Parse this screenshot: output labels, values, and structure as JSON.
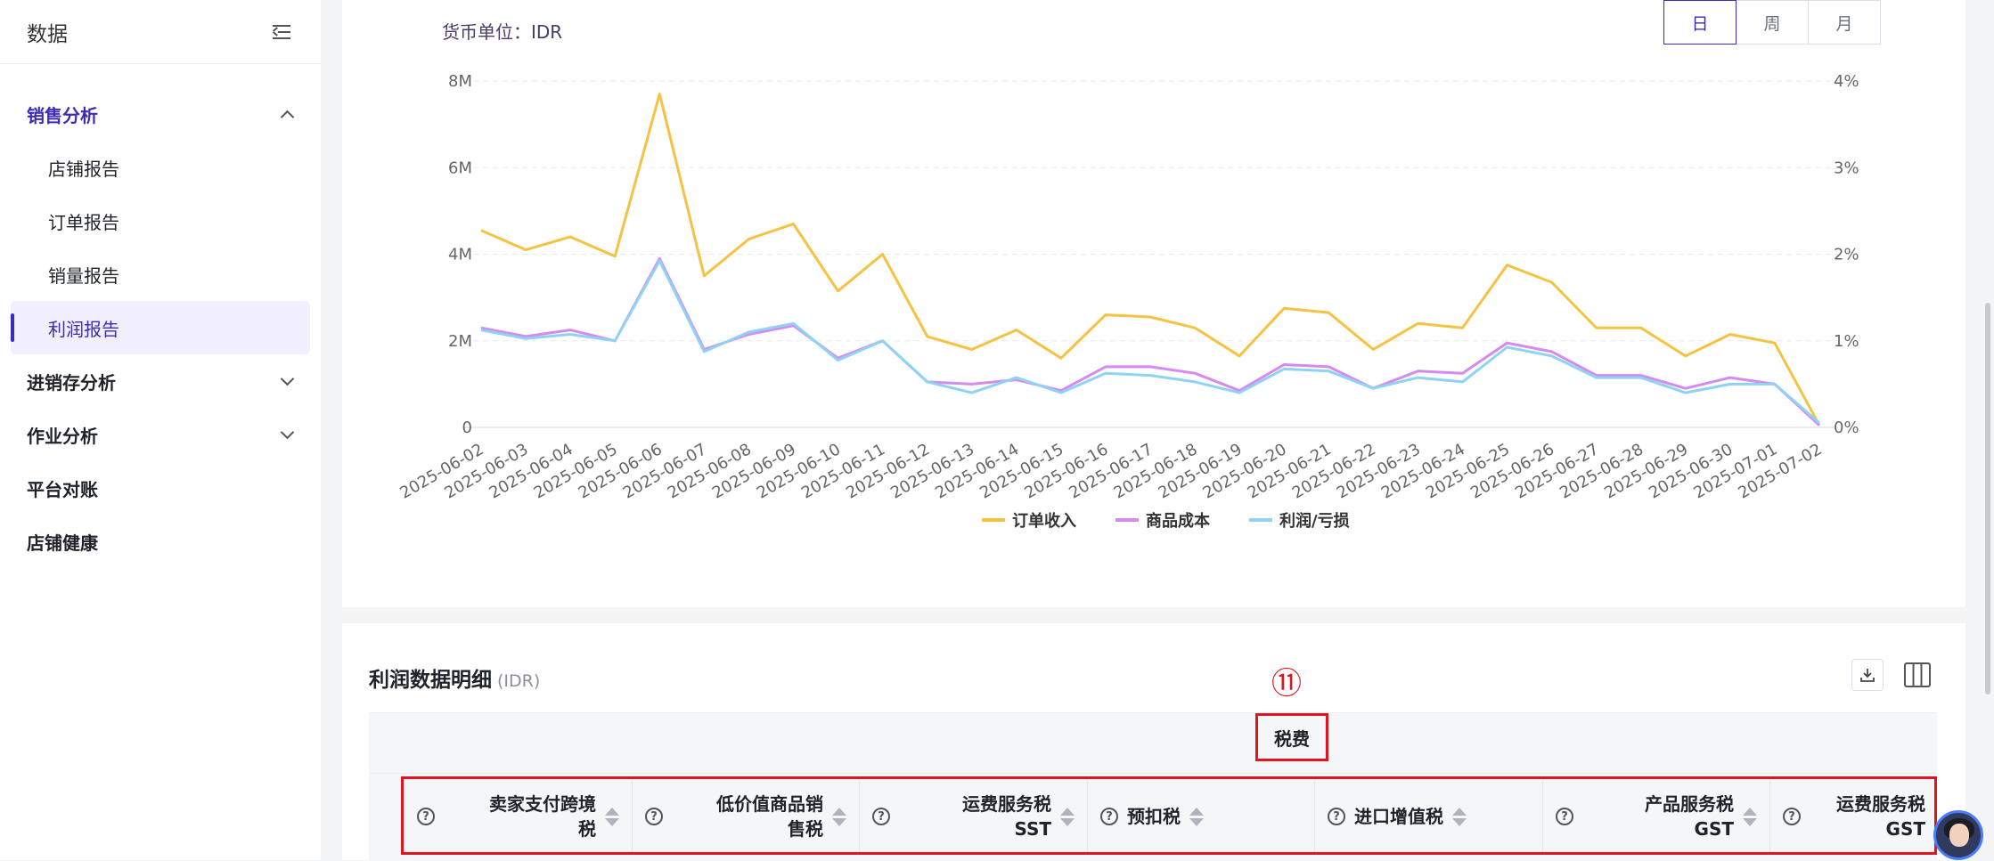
{
  "sidebar": {
    "title": "数据",
    "groups": [
      {
        "label": "销售分析",
        "expanded": true
      },
      {
        "label": "进销存分析"
      },
      {
        "label": "作业分析"
      },
      {
        "label": "平台对账"
      },
      {
        "label": "店铺健康"
      }
    ],
    "sales_items": [
      "店铺报告",
      "订单报告",
      "销量报告",
      "利润报告"
    ],
    "selected_item": "利润报告"
  },
  "chart_panel": {
    "currency_label": "货币单位：IDR",
    "period_buttons": [
      "日",
      "周",
      "月"
    ],
    "active_period": "日"
  },
  "chart_data": {
    "type": "line",
    "x": [
      "2025-06-02",
      "2025-06-03",
      "2025-06-04",
      "2025-06-05",
      "2025-06-06",
      "2025-06-07",
      "2025-06-08",
      "2025-06-09",
      "2025-06-10",
      "2025-06-11",
      "2025-06-12",
      "2025-06-13",
      "2025-06-14",
      "2025-06-15",
      "2025-06-16",
      "2025-06-17",
      "2025-06-18",
      "2025-06-19",
      "2025-06-20",
      "2025-06-21",
      "2025-06-22",
      "2025-06-23",
      "2025-06-24",
      "2025-06-25",
      "2025-06-26",
      "2025-06-27",
      "2025-06-28",
      "2025-06-29",
      "2025-06-30",
      "2025-07-01",
      "2025-07-02"
    ],
    "y_left_ticks": [
      "0",
      "2M",
      "4M",
      "6M",
      "8M"
    ],
    "y_left_lim": [
      0,
      8000000
    ],
    "y_right_ticks": [
      "0%",
      "1%",
      "2%",
      "3%",
      "4%"
    ],
    "grid": true,
    "legend_position": "bottom",
    "series": [
      {
        "name": "订单收入",
        "color": "#f5c242",
        "values": [
          4.55,
          4.1,
          4.4,
          3.95,
          7.7,
          3.5,
          4.35,
          4.7,
          3.15,
          4.0,
          2.1,
          1.8,
          2.25,
          1.6,
          2.6,
          2.55,
          2.3,
          1.65,
          2.75,
          2.65,
          1.8,
          2.4,
          2.3,
          3.75,
          3.35,
          2.3,
          2.3,
          1.65,
          2.15,
          1.95,
          0.05
        ]
      },
      {
        "name": "商品成本",
        "color": "#d58af2",
        "values": [
          2.3,
          2.1,
          2.25,
          2.0,
          3.9,
          1.8,
          2.15,
          2.35,
          1.6,
          2.0,
          1.05,
          1.0,
          1.1,
          0.85,
          1.4,
          1.4,
          1.25,
          0.85,
          1.45,
          1.4,
          0.9,
          1.3,
          1.25,
          1.95,
          1.75,
          1.2,
          1.2,
          0.9,
          1.15,
          1.0,
          0.05
        ]
      },
      {
        "name": "利润/亏损",
        "color": "#8fd3f4",
        "values": [
          2.25,
          2.05,
          2.15,
          2.0,
          3.85,
          1.75,
          2.2,
          2.4,
          1.55,
          2.0,
          1.05,
          0.8,
          1.15,
          0.8,
          1.25,
          1.2,
          1.05,
          0.8,
          1.35,
          1.3,
          0.9,
          1.15,
          1.05,
          1.85,
          1.65,
          1.15,
          1.15,
          0.8,
          1.0,
          1.0,
          0.1
        ]
      }
    ],
    "value_unit": "M"
  },
  "table": {
    "title": "利润数据明细",
    "currency": "(IDR)",
    "marker": "⑪",
    "group_header": "税费",
    "columns": [
      {
        "line1": "卖家支付跨境",
        "line2": "税"
      },
      {
        "line1": "低价值商品销",
        "line2": "售税"
      },
      {
        "line1": "运费服务税",
        "line2": "SST"
      },
      {
        "line1": "预扣税",
        "line2": ""
      },
      {
        "line1": "进口增值税",
        "line2": ""
      },
      {
        "line1": "产品服务税",
        "line2": "GST"
      },
      {
        "line1": "运费服务税",
        "line2": "GST"
      }
    ]
  }
}
